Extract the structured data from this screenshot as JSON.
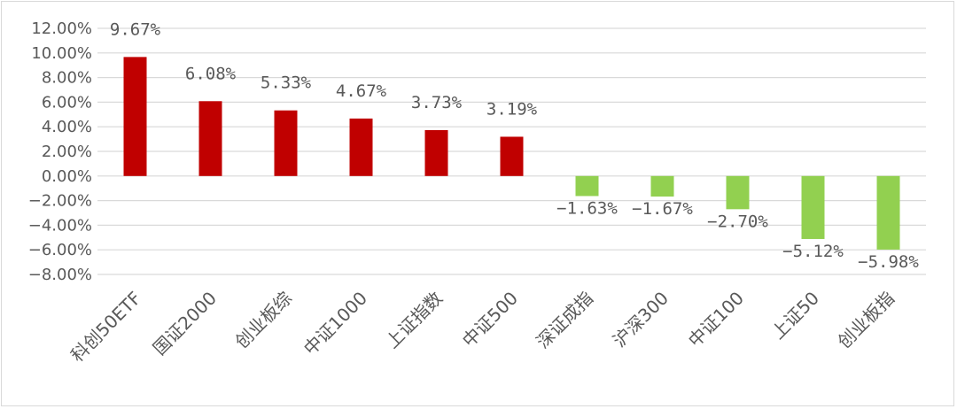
{
  "chart_data": {
    "type": "bar",
    "title": "",
    "xlabel": "",
    "ylabel": "",
    "categories": [
      "科创50ETF",
      "国证2000",
      "创业板综",
      "中证1000",
      "上证指数",
      "中证500",
      "深证成指",
      "沪深300",
      "中证100",
      "上证50",
      "创业板指"
    ],
    "values": [
      9.67,
      6.08,
      5.33,
      4.67,
      3.73,
      3.19,
      -1.63,
      -1.67,
      -2.7,
      -5.12,
      -5.98
    ],
    "data_labels": [
      "9.67%",
      "6.08%",
      "5.33%",
      "4.67%",
      "3.73%",
      "3.19%",
      "−1.63%",
      "−1.67%",
      "−2.70%",
      "−5.12%",
      "−5.98%"
    ],
    "ylim": [
      -8,
      12
    ],
    "yticks": [
      12,
      10,
      8,
      6,
      4,
      2,
      0,
      -2,
      -4,
      -6,
      -8
    ],
    "ytick_labels": [
      "12.00%",
      "10.00%",
      "8.00%",
      "6.00%",
      "4.00%",
      "2.00%",
      "0.00%",
      "−2.00%",
      "−4.00%",
      "−6.00%",
      "−8.00%"
    ],
    "grid": true,
    "legend": "none",
    "colors": {
      "positive": "#c00000",
      "negative": "#92d050",
      "grid": "#d9d9d9",
      "text": "#595959"
    }
  }
}
